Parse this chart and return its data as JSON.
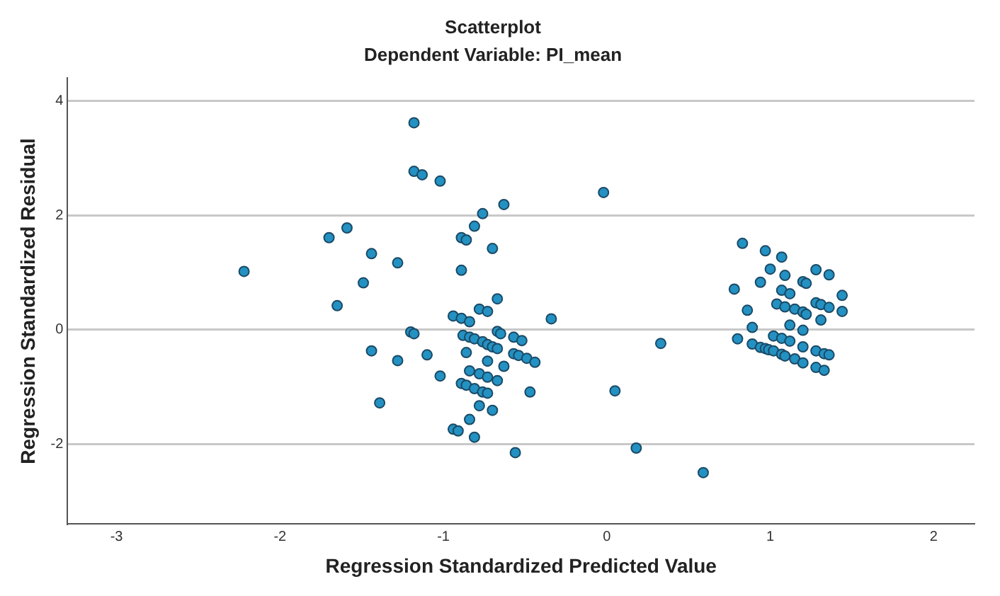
{
  "chart_data": {
    "type": "scatter",
    "title": "Scatterplot",
    "subtitle": "Dependent Variable: PI_mean",
    "xlabel": "Regression Standardized Predicted Value",
    "ylabel": "Regression Standardized Residual",
    "xlim": [
      -3.3,
      2.25
    ],
    "ylim": [
      -3.4,
      4.4
    ],
    "xticks": [
      -3,
      -2,
      -1,
      0,
      1,
      2
    ],
    "yticks": [
      -2,
      0,
      2,
      4
    ],
    "grid": "y",
    "legend": false,
    "marker": "circle",
    "series": [
      {
        "color": "#2391c2",
        "x": [
          -2.22,
          -1.7,
          -1.59,
          -1.65,
          -1.44,
          -1.49,
          -1.28,
          -1.44,
          -1.28,
          -1.39,
          -1.18,
          -1.18,
          -1.13,
          -1.02,
          -1.2,
          -1.18,
          -1.1,
          -1.02,
          -0.94,
          -0.91,
          -0.81,
          -0.84,
          -0.78,
          -0.7,
          -0.56,
          -0.47,
          -0.89,
          -0.89,
          -0.86,
          -0.81,
          -0.76,
          -0.63,
          -0.7,
          -0.78,
          -0.73,
          -0.67,
          -0.94,
          -0.89,
          -0.84,
          -0.34,
          -0.88,
          -0.84,
          -0.81,
          -0.76,
          -0.73,
          -0.7,
          -0.67,
          -0.67,
          -0.65,
          -0.57,
          -0.52,
          -0.86,
          -0.57,
          -0.54,
          -0.49,
          -0.44,
          -0.73,
          -0.63,
          -0.84,
          -0.78,
          -0.73,
          -0.67,
          -0.89,
          -0.86,
          -0.81,
          -0.76,
          -0.73,
          -0.02,
          0.33,
          0.05,
          0.18,
          0.59,
          0.83,
          0.97,
          1.07,
          1.0,
          1.09,
          1.28,
          1.36,
          0.94,
          1.2,
          1.22,
          0.78,
          1.07,
          1.12,
          1.44,
          0.86,
          1.04,
          1.09,
          1.15,
          1.2,
          1.22,
          1.28,
          1.31,
          1.36,
          1.44,
          1.31,
          1.12,
          0.89,
          1.2,
          0.8,
          1.02,
          1.07,
          1.12,
          0.89,
          0.94,
          0.97,
          0.99,
          1.02,
          1.2,
          1.28,
          1.33,
          1.36,
          1.07,
          1.09,
          1.15,
          1.2,
          1.28,
          1.33
        ],
        "values": [
          1.02,
          1.61,
          1.78,
          0.42,
          1.33,
          0.82,
          1.17,
          -0.37,
          -0.54,
          -1.28,
          3.62,
          2.77,
          2.71,
          2.6,
          -0.04,
          -0.07,
          -0.44,
          -0.81,
          -1.74,
          -1.77,
          -1.88,
          -1.57,
          -1.33,
          -1.41,
          -2.15,
          -1.09,
          1.04,
          1.61,
          1.57,
          1.81,
          2.03,
          2.19,
          1.42,
          0.36,
          0.32,
          0.54,
          0.24,
          0.2,
          0.14,
          0.19,
          -0.1,
          -0.13,
          -0.16,
          -0.21,
          -0.26,
          -0.3,
          -0.33,
          -0.03,
          -0.07,
          -0.13,
          -0.19,
          -0.4,
          -0.42,
          -0.45,
          -0.5,
          -0.57,
          -0.55,
          -0.64,
          -0.72,
          -0.77,
          -0.83,
          -0.89,
          -0.94,
          -0.97,
          -1.03,
          -1.09,
          -1.11,
          2.4,
          -0.24,
          -1.07,
          -2.07,
          -2.5,
          1.51,
          1.38,
          1.27,
          1.06,
          0.95,
          1.05,
          0.96,
          0.83,
          0.84,
          0.81,
          0.71,
          0.69,
          0.63,
          0.6,
          0.34,
          0.45,
          0.4,
          0.36,
          0.31,
          0.27,
          0.47,
          0.44,
          0.39,
          0.32,
          0.17,
          0.08,
          0.04,
          -0.01,
          -0.16,
          -0.11,
          -0.15,
          -0.2,
          -0.25,
          -0.31,
          -0.33,
          -0.35,
          -0.37,
          -0.3,
          -0.37,
          -0.42,
          -0.44,
          -0.43,
          -0.46,
          -0.51,
          -0.58,
          -0.66,
          -0.71
        ]
      }
    ]
  }
}
